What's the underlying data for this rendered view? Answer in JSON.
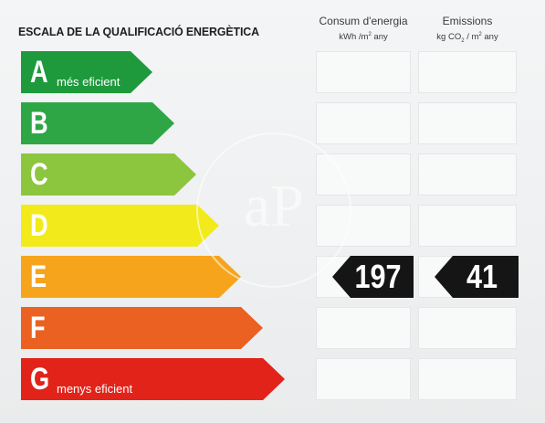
{
  "title": "ESCALA DE LA QUALIFICACIÓ ENERGÈTICA",
  "columns": {
    "consumption": {
      "heading": "Consum d'energia",
      "unit_pre": "kWh /m",
      "unit_sup": "2",
      "unit_post": " any"
    },
    "emissions": {
      "heading": "Emissions",
      "unit_pre": "kg CO",
      "unit_sub": "2",
      "unit_mid": " / m",
      "unit_sup": "2",
      "unit_post": " any"
    }
  },
  "classes": [
    {
      "letter": "A",
      "label": "més eficient",
      "color": "#1e9a3d"
    },
    {
      "letter": "B",
      "label": "",
      "color": "#2ea646"
    },
    {
      "letter": "C",
      "label": "",
      "color": "#8cc63f"
    },
    {
      "letter": "D",
      "label": "",
      "color": "#f2ea1a"
    },
    {
      "letter": "E",
      "label": "",
      "color": "#f6a41c"
    },
    {
      "letter": "F",
      "label": "",
      "color": "#ea6121"
    },
    {
      "letter": "G",
      "label": "menys eficient",
      "color": "#e2231a"
    }
  ],
  "rating": {
    "class": "E",
    "consumption_value": "197",
    "emissions_value": "41"
  },
  "watermark": {
    "text": "aP"
  }
}
